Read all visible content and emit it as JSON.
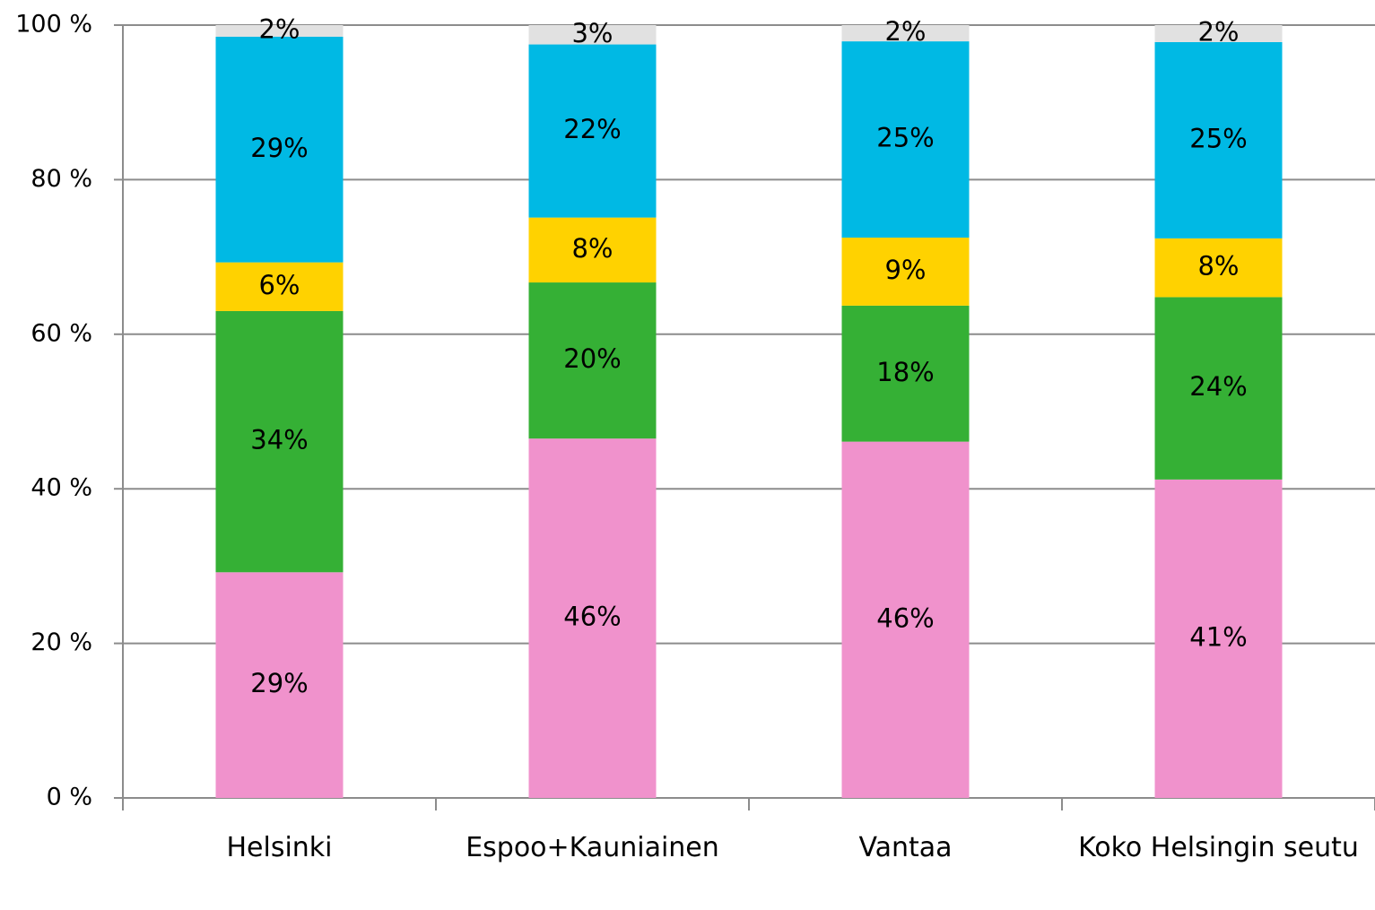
{
  "chart_data": {
    "type": "stacked_bar",
    "categories": [
      "Helsinki",
      "Espoo+Kauniainen",
      "Vantaa",
      "Koko Helsingin seutu"
    ],
    "series": [
      {
        "color": "#f092cc",
        "values": [
          29.2,
          46.5,
          46.1,
          41.2
        ],
        "value_labels": [
          "29%",
          "46%",
          "46%",
          "41%"
        ]
      },
      {
        "color": "#35b035",
        "values": [
          33.8,
          20.2,
          17.6,
          23.6
        ],
        "value_labels": [
          "34%",
          "20%",
          "18%",
          "24%"
        ]
      },
      {
        "color": "#ffd200",
        "values": [
          6.3,
          8.4,
          8.8,
          7.6
        ],
        "value_labels": [
          "6%",
          "8%",
          "9%",
          "8%"
        ]
      },
      {
        "color": "#00b9e4",
        "values": [
          29.2,
          22.4,
          25.4,
          25.4
        ],
        "value_labels": [
          "29%",
          "22%",
          "25%",
          "25%"
        ]
      },
      {
        "color": "#e1e1e1",
        "values": [
          1.5,
          2.5,
          2.1,
          2.2
        ],
        "value_labels": [
          "2%",
          "3%",
          "2%",
          "2%"
        ]
      }
    ],
    "ylim": [
      0,
      100
    ],
    "yticks": [
      {
        "value": 0,
        "label": "0 %"
      },
      {
        "value": 20,
        "label": "20 %"
      },
      {
        "value": 40,
        "label": "40 %"
      },
      {
        "value": 60,
        "label": "60 %"
      },
      {
        "value": 80,
        "label": "80 %"
      },
      {
        "value": 100,
        "label": "100 %"
      }
    ],
    "grid": true
  }
}
